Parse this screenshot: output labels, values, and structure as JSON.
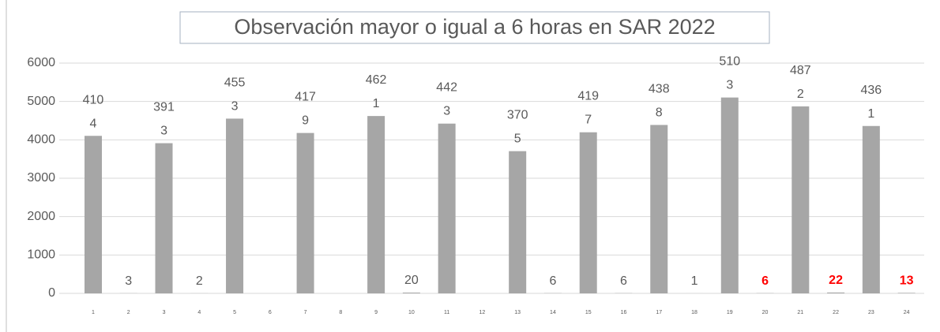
{
  "chart_data": {
    "type": "bar",
    "title": "Observación mayor o igual a 6 horas en SAR 2022",
    "categories": [
      "1",
      "2",
      "3",
      "4",
      "5",
      "6",
      "7",
      "8",
      "9",
      "10",
      "11",
      "12",
      "13",
      "14",
      "15",
      "16",
      "17",
      "18",
      "19",
      "20",
      "21",
      "22",
      "23",
      "24"
    ],
    "values": [
      4104,
      3,
      3913,
      2,
      4553,
      null,
      4179,
      null,
      4621,
      20,
      4423,
      null,
      3705,
      6,
      4197,
      6,
      4388,
      1,
      5103,
      6,
      4872,
      22,
      4361,
      13
    ],
    "color": "#a6a6a6",
    "label_color": "#595959",
    "value_label_colors": [
      "#595959",
      "#595959",
      "#595959",
      "#595959",
      "#595959",
      "#595959",
      "#595959",
      "#595959",
      "#595959",
      "#595959",
      "#595959",
      "#595959",
      "#595959",
      "#595959",
      "#595959",
      "#595959",
      "#595959",
      "#595959",
      "#595959",
      "#ff0000",
      "#595959",
      "#ff0000",
      "#595959",
      "#ff0000"
    ],
    "ylim": [
      0,
      6000
    ],
    "yticks": [
      0,
      1000,
      2000,
      3000,
      4000,
      5000,
      6000
    ],
    "grid": true
  }
}
